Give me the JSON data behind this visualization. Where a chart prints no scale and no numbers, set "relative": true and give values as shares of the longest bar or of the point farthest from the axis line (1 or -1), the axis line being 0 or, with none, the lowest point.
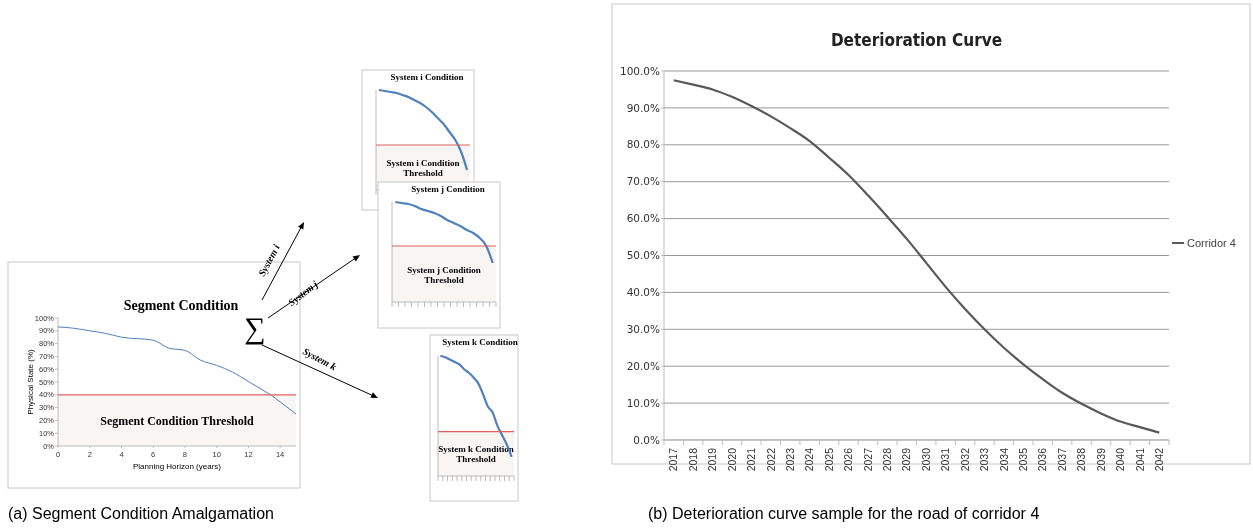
{
  "chart_data": [
    {
      "type": "line",
      "title": "Segment Condition",
      "xlabel": "Planning Horizon (years)",
      "ylabel": "Physical State (%)",
      "series": [
        {
          "color": "#4f81bd",
          "x": [
            0,
            1,
            2,
            3,
            4,
            6,
            7,
            8,
            9,
            10,
            11,
            12,
            13,
            13.4,
            14,
            15
          ],
          "values": [
            93,
            92,
            90,
            88,
            85,
            82.7,
            76.4,
            74.7,
            67,
            63,
            57.8,
            50.4,
            43,
            40,
            34.5,
            25
          ]
        }
      ],
      "xlim": [
        0,
        15
      ],
      "xticks": [
        0,
        2,
        4,
        6,
        8,
        10,
        12,
        14
      ],
      "ylim": [
        0,
        100
      ],
      "yticks": [
        {
          "value": 0,
          "label": "0%"
        },
        {
          "value": 10,
          "label": "10%"
        },
        {
          "value": 20,
          "label": "20%"
        },
        {
          "value": 30,
          "label": "30%"
        },
        {
          "value": 40,
          "label": "40%"
        },
        {
          "value": 50,
          "label": "50%"
        },
        {
          "value": 60,
          "label": "60%"
        },
        {
          "value": 70,
          "label": "70%"
        },
        {
          "value": 80,
          "label": "80%"
        },
        {
          "value": 90,
          "label": "90%"
        },
        {
          "value": 100,
          "label": "100%"
        }
      ],
      "ref_lines": [
        {
          "axis": "y",
          "value": 40,
          "color": "#e06060"
        }
      ],
      "bands": [
        {
          "axis": "y",
          "from": 0,
          "to": 40,
          "label": "Segment Condition Threshold",
          "color": "#f8f5f3"
        }
      ],
      "annotations": [
        "∑",
        "System i",
        "System j",
        "System k",
        "(a) Segment Condition Amalgamation"
      ]
    },
    {
      "type": "line",
      "title": "System i Condition",
      "relative": true,
      "categories": [
        null,
        null,
        null,
        null,
        null,
        null,
        null,
        null,
        null,
        null,
        null,
        null,
        null,
        null,
        null,
        null
      ],
      "series": [
        {
          "color": "#4f81bd",
          "values": [
            1,
            0.99,
            0.98,
            0.97,
            0.95,
            0.93,
            0.9,
            0.87,
            0.83,
            0.78,
            0.72,
            0.66,
            0.58,
            0.5,
            0.38,
            0.2
          ]
        }
      ],
      "ref_lines": [
        {
          "axis": "y",
          "value": 0.45,
          "color": "#e06060"
        }
      ],
      "bands": [
        {
          "axis": "y",
          "from": 0,
          "to": 0.45,
          "label": "System i Condition Threshold",
          "color": "#f8f5f3"
        }
      ]
    },
    {
      "type": "line",
      "title": "System j Condition",
      "relative": true,
      "categories": [
        null,
        null,
        null,
        null,
        null,
        null,
        null,
        null,
        null,
        null,
        null,
        null,
        null,
        null,
        null,
        null
      ],
      "series": [
        {
          "color": "#4f81bd",
          "values": [
            1,
            0.99,
            0.98,
            0.96,
            0.93,
            0.91,
            0.89,
            0.86,
            0.82,
            0.79,
            0.76,
            0.72,
            0.69,
            0.64,
            0.56,
            0.39
          ]
        }
      ],
      "ref_lines": [
        {
          "axis": "y",
          "value": 0.56,
          "color": "#e06060"
        }
      ],
      "bands": [
        {
          "axis": "y",
          "from": 0,
          "to": 0.56,
          "label": "System j Condition Threshold",
          "color": "#f8f5f3"
        }
      ]
    },
    {
      "type": "line",
      "title": "System k Condition",
      "relative": true,
      "categories": [
        null,
        null,
        null,
        null,
        null,
        null,
        null,
        null,
        null,
        null,
        null,
        null,
        null,
        null,
        null,
        null
      ],
      "series": [
        {
          "color": "#4f81bd",
          "values": [
            1,
            0.99,
            0.97,
            0.95,
            0.93,
            0.89,
            0.86,
            0.82,
            0.77,
            0.68,
            0.58,
            0.53,
            0.42,
            0.34,
            0.26,
            0.16
          ]
        }
      ],
      "ref_lines": [
        {
          "axis": "y",
          "value": 0.37,
          "color": "#e06060"
        }
      ],
      "bands": [
        {
          "axis": "y",
          "from": 0,
          "to": 0.37,
          "label": "System k Condition Threshold",
          "color": "#f8f5f3"
        }
      ]
    },
    {
      "type": "line",
      "title": "Deterioration Curve",
      "categories": [
        "2017",
        "2018",
        "2019",
        "2020",
        "2021",
        "2022",
        "2023",
        "2024",
        "2025",
        "2026",
        "2027",
        "2028",
        "2029",
        "2030",
        "2031",
        "2032",
        "2033",
        "2034",
        "2035",
        "2036",
        "2037",
        "2038",
        "2039",
        "2040",
        "2041",
        "2042"
      ],
      "series": [
        {
          "name": "Corridor 4",
          "color": "#595959",
          "values": [
            97.5,
            96.3,
            95,
            93,
            90.5,
            87.7,
            84.5,
            81,
            76.5,
            71.8,
            66.3,
            60.5,
            54.5,
            48,
            41.5,
            35.5,
            30,
            25,
            20.5,
            16.5,
            12.8,
            9.8,
            7.2,
            5,
            3.5,
            2
          ]
        }
      ],
      "ylim": [
        0,
        100
      ],
      "yticks": [
        {
          "value": 0,
          "label": "0.0%"
        },
        {
          "value": 10,
          "label": "10.0%"
        },
        {
          "value": 20,
          "label": "20.0%"
        },
        {
          "value": 30,
          "label": "30.0%"
        },
        {
          "value": 40,
          "label": "40.0%"
        },
        {
          "value": 50,
          "label": "50.0%"
        },
        {
          "value": 60,
          "label": "60.0%"
        },
        {
          "value": 70,
          "label": "70.0%"
        },
        {
          "value": 80,
          "label": "80.0%"
        },
        {
          "value": 90,
          "label": "90.0%"
        },
        {
          "value": 100,
          "label": "100.0%"
        }
      ],
      "grid": "y",
      "legend": "right",
      "annotations": [
        "(b) Deterioration curve sample for the road of corridor 4"
      ]
    }
  ]
}
